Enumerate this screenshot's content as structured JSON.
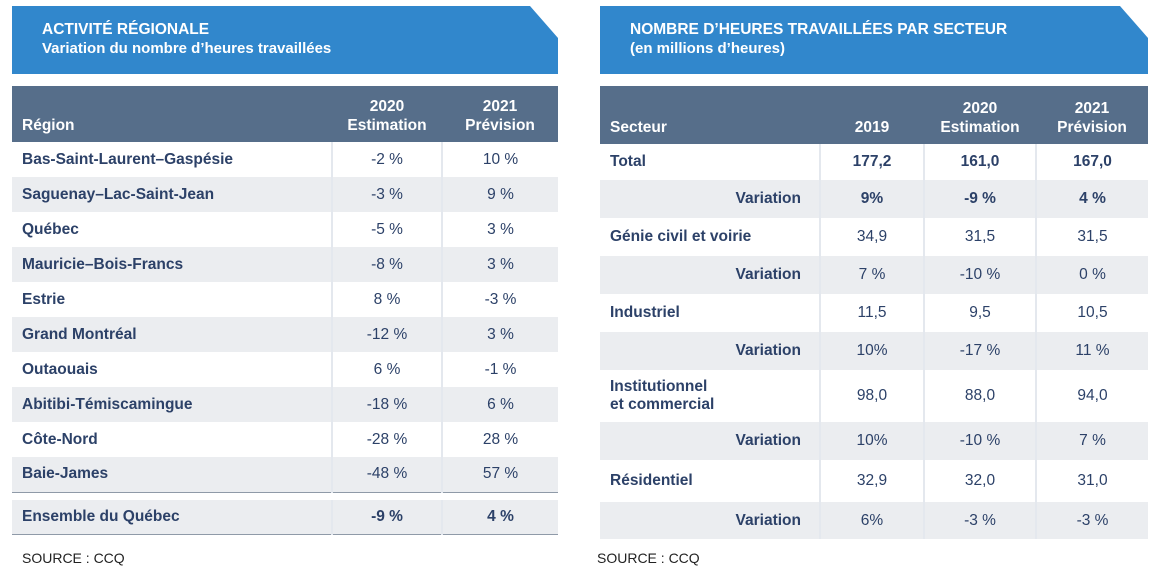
{
  "left": {
    "title": "ACTIVITÉ RÉGIONALE",
    "subtitle": "Variation du nombre d’heures travaillées",
    "headers": {
      "region": "Région",
      "col1_line1": "2020",
      "col1_line2": "Estimation",
      "col2_line1": "2021",
      "col2_line2": "Prévision"
    },
    "rows": [
      {
        "region": "Bas-Saint-Laurent–Gaspésie",
        "est2020": "-2 %",
        "prev2021": "10 %"
      },
      {
        "region": "Saguenay–Lac-Saint-Jean",
        "est2020": "-3 %",
        "prev2021": "9 %"
      },
      {
        "region": "Québec",
        "est2020": "-5 %",
        "prev2021": "3 %"
      },
      {
        "region": "Mauricie–Bois-Francs",
        "est2020": "-8 %",
        "prev2021": "3 %"
      },
      {
        "region": "Estrie",
        "est2020": "8 %",
        "prev2021": "-3 %"
      },
      {
        "region": "Grand Montréal",
        "est2020": "-12 %",
        "prev2021": "3 %"
      },
      {
        "region": "Outaouais",
        "est2020": "6 %",
        "prev2021": "-1 %"
      },
      {
        "region": "Abitibi-Témiscamingue",
        "est2020": "-18 %",
        "prev2021": "6 %"
      },
      {
        "region": "Côte-Nord",
        "est2020": "-28 %",
        "prev2021": "28 %"
      },
      {
        "region": "Baie-James",
        "est2020": "-48 %",
        "prev2021": "57 %"
      }
    ],
    "total": {
      "region": "Ensemble du Québec",
      "est2020": "-9 %",
      "prev2021": "4 %"
    },
    "source": "SOURCE : CCQ"
  },
  "right": {
    "title": "NOMBRE D’HEURES TRAVAILLÉES PAR SECTEUR",
    "subtitle": "(en millions d’heures)",
    "headers": {
      "secteur": "Secteur",
      "col1": "2019",
      "col2_line1": "2020",
      "col2_line2": "Estimation",
      "col3_line1": "2021",
      "col3_line2": "Prévision"
    },
    "rows": [
      {
        "label": "Total",
        "v2019": "177,2",
        "v2020": "161,0",
        "v2021": "167,0",
        "variation_label": "Variation",
        "var2019": "9%",
        "var2020": "-9 %",
        "var2021": "4 %"
      },
      {
        "label": "Génie civil et voirie",
        "v2019": "34,9",
        "v2020": "31,5",
        "v2021": "31,5",
        "variation_label": "Variation",
        "var2019": "7 %",
        "var2020": "-10 %",
        "var2021": "0 %"
      },
      {
        "label": "Industriel",
        "v2019": "11,5",
        "v2020": "9,5",
        "v2021": "10,5",
        "variation_label": "Variation",
        "var2019": "10%",
        "var2020": "-17 %",
        "var2021": "11 %"
      },
      {
        "label_line1": "Institutionnel",
        "label_line2": "et commercial",
        "v2019": "98,0",
        "v2020": "88,0",
        "v2021": "94,0",
        "variation_label": "Variation",
        "var2019": "10%",
        "var2020": "-10 %",
        "var2021": "7 %"
      },
      {
        "label": "Résidentiel",
        "v2019": "32,9",
        "v2020": "32,0",
        "v2021": "31,0",
        "variation_label": "Variation",
        "var2019": "6%",
        "var2020": "-3 %",
        "var2021": "-3 %"
      }
    ],
    "source": "SOURCE : CCQ"
  }
}
